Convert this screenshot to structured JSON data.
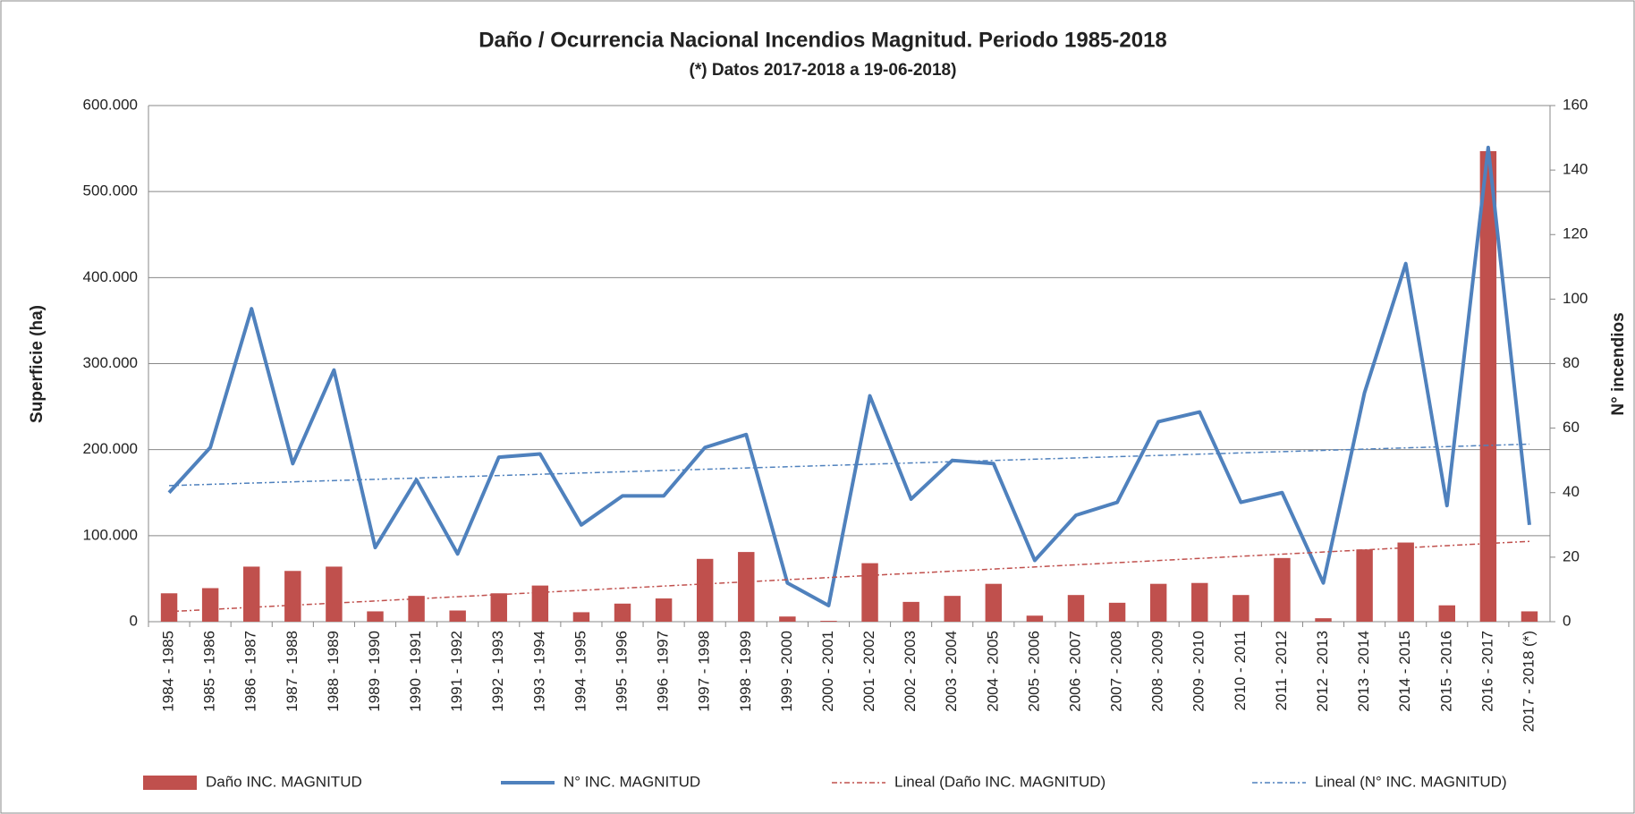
{
  "chart_data": {
    "type": "bar-line",
    "title": "Daño / Ocurrencia Nacional Incendios Magnitud. Periodo 1985-2018",
    "subtitle": "(*) Datos 2017-2018 a 19-06-2018)",
    "y_label": "Superficie (ha)",
    "y2_label": "N° incendios",
    "categories": [
      "1984 - 1985",
      "1985 - 1986",
      "1986 - 1987",
      "1987 - 1988",
      "1988 - 1989",
      "1989 - 1990",
      "1990 - 1991",
      "1991 - 1992",
      "1992 - 1993",
      "1993 - 1994",
      "1994 - 1995",
      "1995 - 1996",
      "1996 - 1997",
      "1997 - 1998",
      "1998 - 1999",
      "1999 - 2000",
      "2000 - 2001",
      "2001 - 2002",
      "2002 - 2003",
      "2003 - 2004",
      "2004 - 2005",
      "2005 - 2006",
      "2006 - 2007",
      "2007 - 2008",
      "2008 - 2009",
      "2009 - 2010",
      "2010 - 2011",
      "2011 - 2012",
      "2012 - 2013",
      "2013 - 2014",
      "2014 - 2015",
      "2015 - 2016",
      "2016 - 2017",
      "2017 - 2018 (*)"
    ],
    "series": [
      {
        "name": "Daño INC. MAGNITUD",
        "type": "bar",
        "color": "#c0504d",
        "values": [
          33000,
          39000,
          64000,
          59000,
          64000,
          12000,
          30000,
          13000,
          33000,
          42000,
          11000,
          21000,
          27000,
          73000,
          81000,
          6000,
          1000,
          68000,
          23000,
          30000,
          44000,
          7000,
          31000,
          22000,
          44000,
          45000,
          31000,
          74000,
          4000,
          84000,
          92000,
          19000,
          547000,
          12000
        ]
      },
      {
        "name": "N° INC. MAGNITUD",
        "type": "line",
        "axis": "y2",
        "color": "#4f81bd",
        "values": [
          40,
          54,
          97,
          49,
          78,
          23,
          44,
          21,
          51,
          52,
          30,
          39,
          39,
          54,
          58,
          12,
          5,
          70,
          38,
          50,
          49,
          19,
          33,
          37,
          62,
          65,
          37,
          40,
          12,
          71,
          111,
          36,
          147,
          30
        ]
      }
    ],
    "trendlines": [
      {
        "name": "Lineal (Daño INC. MAGNITUD)",
        "color": "#c0504d"
      },
      {
        "name": "Lineal (N° INC. MAGNITUD)",
        "color": "#4f81bd"
      }
    ],
    "ylim": [
      0,
      600000
    ],
    "yticks": [
      0,
      {
        "value": 100000,
        "label": "100.000"
      },
      {
        "value": 200000,
        "label": "200.000"
      },
      {
        "value": 300000,
        "label": "300.000"
      },
      {
        "value": 400000,
        "label": "400.000"
      },
      {
        "value": 500000,
        "label": "500.000"
      },
      {
        "value": 600000,
        "label": "600.000"
      }
    ],
    "y2lim": [
      0,
      160
    ],
    "y2ticks": [
      0,
      20,
      40,
      60,
      80,
      100,
      120,
      140,
      160
    ],
    "grid": true,
    "legend": "bottom"
  }
}
